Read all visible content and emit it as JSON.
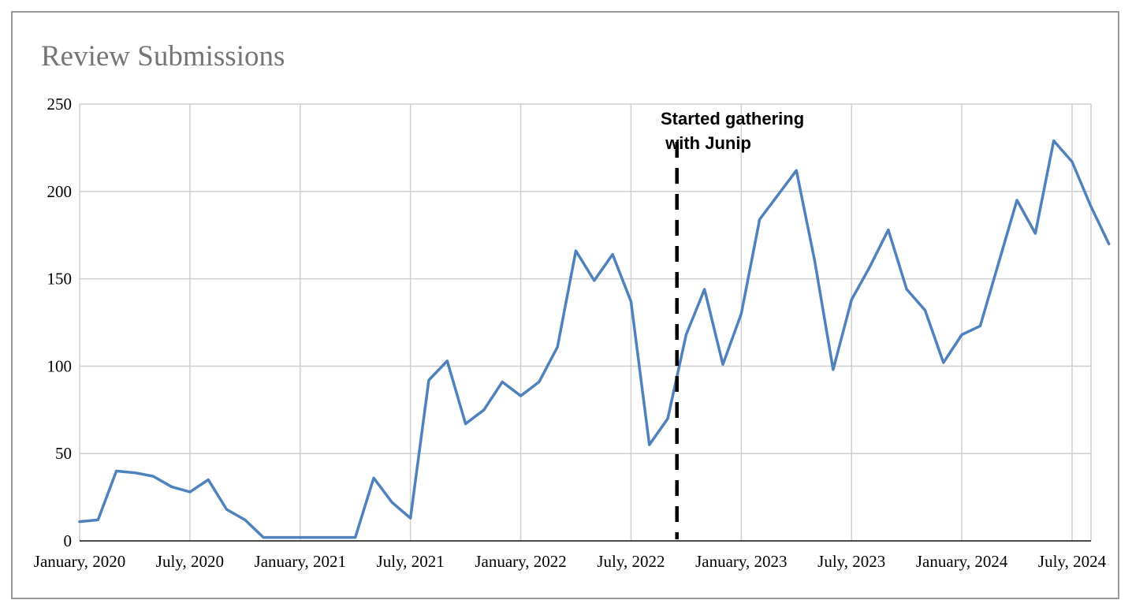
{
  "chart_data": {
    "type": "line",
    "title": "Review Submissions",
    "xlabel": "",
    "ylabel": "",
    "ylim": [
      0,
      250
    ],
    "y_ticks": [
      0,
      50,
      100,
      150,
      200,
      250
    ],
    "x_tick_labels": [
      "January, 2020",
      "July, 2020",
      "January, 2021",
      "July, 2021",
      "January, 2022",
      "July, 2022",
      "January, 2023",
      "July, 2023",
      "January, 2024",
      "July, 2024"
    ],
    "grid": true,
    "legend": "none",
    "line_color": "#4f81bd",
    "series": [
      {
        "values": [
          11,
          12,
          40,
          39,
          37,
          31,
          28,
          35,
          18,
          12,
          2,
          2,
          2,
          2,
          2,
          2,
          36,
          22,
          13,
          92,
          103,
          67,
          75,
          91,
          83,
          91,
          111,
          166,
          149,
          164,
          137,
          55,
          70,
          118,
          144,
          101,
          130,
          184,
          198,
          212,
          160,
          98,
          138,
          157,
          178,
          144,
          132,
          102,
          118,
          123,
          159,
          195,
          176,
          229,
          217,
          192,
          170
        ]
      }
    ],
    "annotation": {
      "text_line1": "Started gathering",
      "text_line2": " with Junip",
      "x_month_index": 32.5,
      "style": "dashed-vertical-line"
    }
  }
}
